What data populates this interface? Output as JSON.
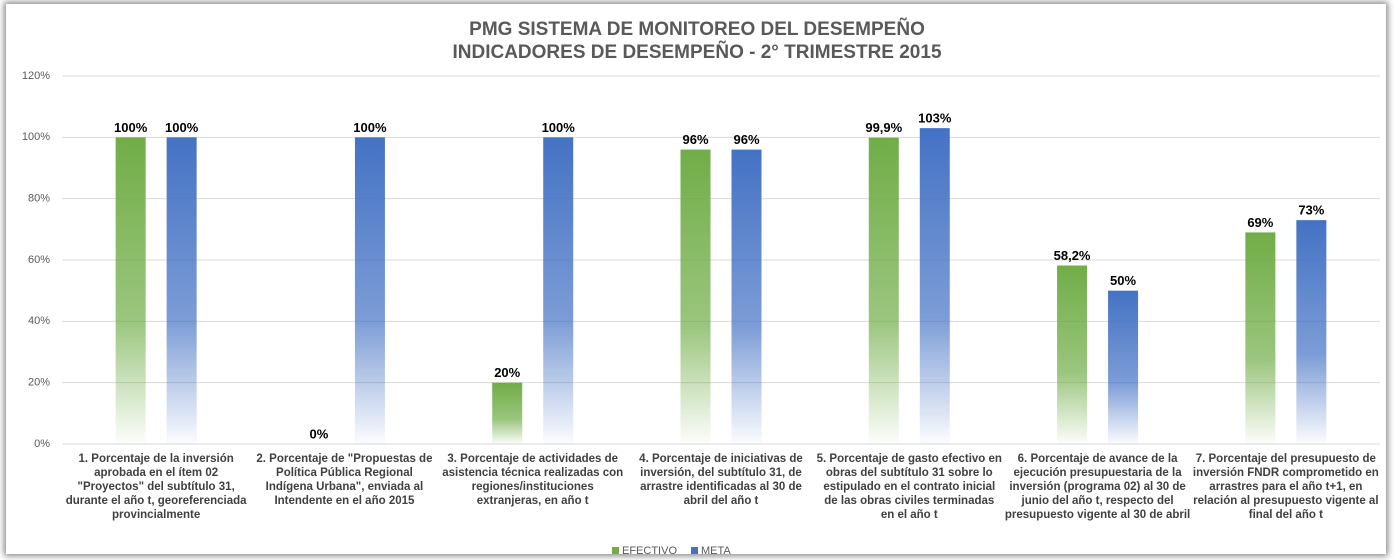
{
  "chart_data": {
    "type": "bar",
    "title": "PMG SISTEMA DE MONITOREO DEL DESEMPEÑO",
    "subtitle": "INDICADORES DE DESEMPEÑO - 2° TRIMESTRE 2015",
    "categories": [
      "1. Porcentaje de la inversión aprobada en el ítem 02 \"Proyectos\" del subtítulo 31, durante el año t, georeferenciada provincialmente",
      "2. Porcentaje de \"Propuestas de Política Pública Regional Indígena Urbana\", enviada al Intendente en el año 2015",
      "3. Porcentaje de actividades de asistencia técnica realizadas con regiones/instituciones extranjeras, en año t",
      "4. Porcentaje de iniciativas de inversión, del subtítulo 31, de arrastre identificadas al 30 de abril del año t",
      "5. Porcentaje de gasto efectivo en obras del subtítulo 31 sobre lo estipulado en el contrato inicial de las obras civiles terminadas en el año t",
      "6. Porcentaje de avance de la ejecución presupuestaria de la inversión (programa 02) al 30 de junio del año t, respecto del presupuesto vigente al 30 de abril",
      "7. Porcentaje del presupuesto de inversión FNDR comprometido en arrastres para el año t+1, en relación al presupuesto vigente al final del año t"
    ],
    "series": [
      {
        "name": "EFECTIVO",
        "color": "#70ad47",
        "values": [
          100,
          0,
          20,
          96,
          99.9,
          58.2,
          69
        ],
        "value_labels": [
          "100%",
          "0%",
          "20%",
          "96%",
          "99,9%",
          "58,2%",
          "69%"
        ]
      },
      {
        "name": "META",
        "color": "#4472c4",
        "values": [
          100,
          100,
          100,
          96,
          103,
          50,
          73
        ],
        "value_labels": [
          "100%",
          "100%",
          "100%",
          "96%",
          "103%",
          "50%",
          "73%"
        ]
      }
    ],
    "ylim": [
      0,
      120
    ],
    "yticks": [
      {
        "value": 0,
        "label": "0%"
      },
      {
        "value": 20,
        "label": "20%"
      },
      {
        "value": 40,
        "label": "40%"
      },
      {
        "value": 60,
        "label": "60%"
      },
      {
        "value": 80,
        "label": "80%"
      },
      {
        "value": 100,
        "label": "100%"
      },
      {
        "value": 120,
        "label": "120%"
      }
    ],
    "grid": true,
    "legend": "bottom"
  }
}
